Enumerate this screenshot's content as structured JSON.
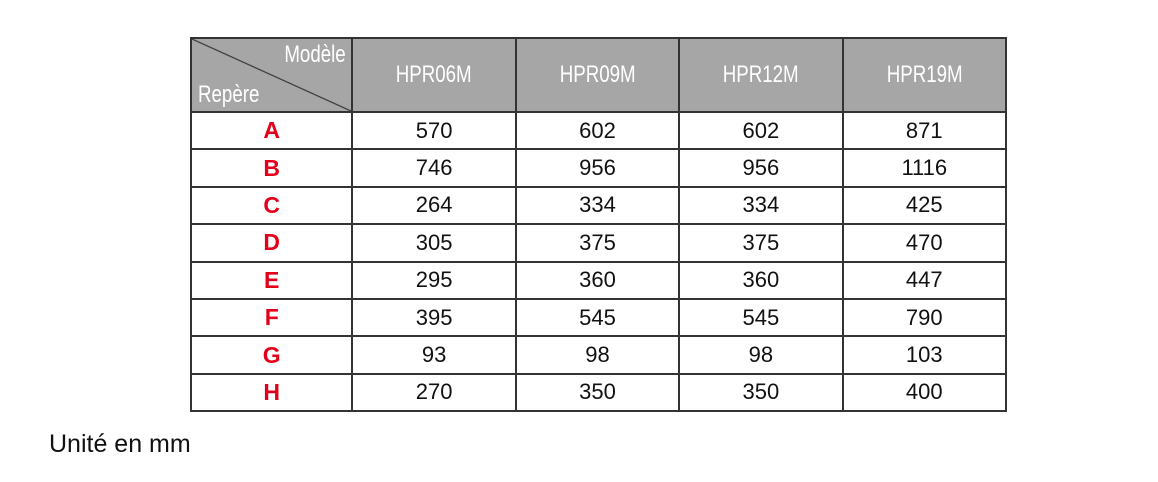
{
  "table": {
    "corner_top": "Modèle",
    "corner_bottom": "Repère",
    "columns": [
      "HPR06M",
      "HPR09M",
      "HPR12M",
      "HPR19M"
    ],
    "rows": [
      {
        "label": "A",
        "values": [
          "570",
          "602",
          "602",
          "871"
        ]
      },
      {
        "label": "B",
        "values": [
          "746",
          "956",
          "956",
          "1116"
        ]
      },
      {
        "label": "C",
        "values": [
          "264",
          "334",
          "334",
          "425"
        ]
      },
      {
        "label": "D",
        "values": [
          "305",
          "375",
          "375",
          "470"
        ]
      },
      {
        "label": "E",
        "values": [
          "295",
          "360",
          "360",
          "447"
        ]
      },
      {
        "label": "F",
        "values": [
          "395",
          "545",
          "545",
          "790"
        ]
      },
      {
        "label": "G",
        "values": [
          "93",
          "98",
          "98",
          "103"
        ]
      },
      {
        "label": "H",
        "values": [
          "270",
          "350",
          "350",
          "400"
        ]
      }
    ]
  },
  "unit_note": "Unité en mm",
  "colors": {
    "header_bg": "#a6a6a6",
    "label": "#e3001b"
  }
}
